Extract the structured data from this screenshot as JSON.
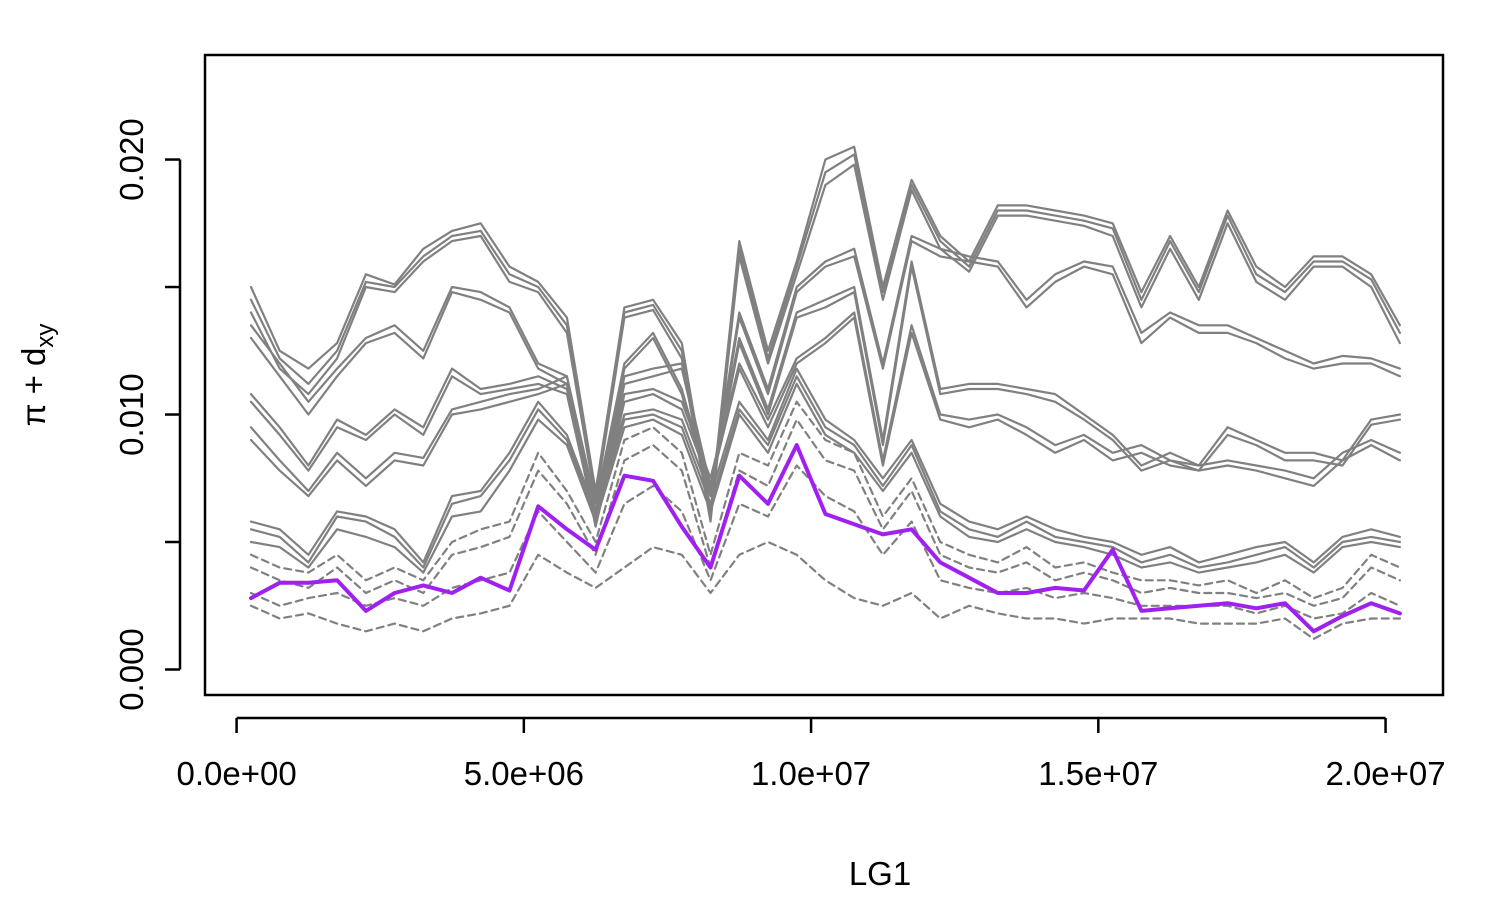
{
  "chart_data": {
    "type": "line",
    "xlabel": "LG1",
    "ylabel": {
      "main": "π + d",
      "sub": "xy"
    },
    "xlim": [
      -550000,
      21000000
    ],
    "ylim": [
      -0.001,
      0.0241
    ],
    "xticks": [
      {
        "value": 0,
        "label": "0.0e+00"
      },
      {
        "value": 5000000,
        "label": "5.0e+06"
      },
      {
        "value": 10000000,
        "label": "1.0e+07"
      },
      {
        "value": 15000000,
        "label": "1.5e+07"
      },
      {
        "value": 20000000,
        "label": "2.0e+07"
      }
    ],
    "yticks": [
      {
        "value": 0.0,
        "label": "0.000"
      },
      {
        "value": 0.005,
        "label": ""
      },
      {
        "value": 0.01,
        "label": "0.010"
      },
      {
        "value": 0.015,
        "label": ""
      },
      {
        "value": 0.02,
        "label": "0.020"
      }
    ],
    "grid": false,
    "legend": "none",
    "colors": {
      "highlight": "#A020F0",
      "other": "#808080"
    },
    "x": [
      250000,
      750000,
      1250000,
      1750000,
      2250000,
      2750000,
      3250000,
      3750000,
      4250000,
      4750000,
      5250000,
      5750000,
      6250000,
      6750000,
      7250000,
      7750000,
      8250000,
      8750000,
      9250000,
      9750000,
      10250000,
      10750000,
      11250000,
      11750000,
      12250000,
      12750000,
      13250000,
      13750000,
      14250000,
      14750000,
      15250000,
      15750000,
      16250000,
      16750000,
      17250000,
      17750000,
      18250000,
      18750000,
      19250000,
      19750000,
      20250000
    ],
    "series": [
      {
        "style": "highlight",
        "values": [
          0.0028,
          0.0034,
          0.0034,
          0.0035,
          0.0023,
          0.003,
          0.0033,
          0.003,
          0.0036,
          0.0031,
          0.0064,
          0.0055,
          0.0047,
          0.0076,
          0.0074,
          0.0056,
          0.004,
          0.0076,
          0.0065,
          0.0088,
          0.0061,
          0.0057,
          0.0053,
          0.0055,
          0.0042,
          0.0036,
          0.003,
          0.003,
          0.0032,
          0.0031,
          0.0047,
          0.0023,
          0.0024,
          0.0025,
          0.0026,
          0.0024,
          0.0026,
          0.0015,
          0.0021,
          0.0026,
          0.0022
        ]
      },
      {
        "style": "solid",
        "values": [
          0.015,
          0.0125,
          0.0118,
          0.0128,
          0.0155,
          0.0151,
          0.0165,
          0.0172,
          0.0175,
          0.0158,
          0.0152,
          0.0138,
          0.007,
          0.0142,
          0.0145,
          0.0128,
          0.0062,
          0.0168,
          0.0125,
          0.016,
          0.02,
          0.0205,
          0.015,
          0.0192,
          0.017,
          0.016,
          0.0182,
          0.0182,
          0.018,
          0.0178,
          0.0175,
          0.0148,
          0.017,
          0.015,
          0.018,
          0.0158,
          0.015,
          0.0162,
          0.0162,
          0.0155,
          0.0135
        ]
      },
      {
        "style": "solid",
        "values": [
          0.0145,
          0.0122,
          0.0112,
          0.0125,
          0.0152,
          0.015,
          0.0162,
          0.017,
          0.0172,
          0.0155,
          0.015,
          0.0135,
          0.0068,
          0.014,
          0.0143,
          0.0125,
          0.006,
          0.0165,
          0.0122,
          0.0158,
          0.0195,
          0.0202,
          0.0148,
          0.019,
          0.0168,
          0.0158,
          0.018,
          0.018,
          0.0178,
          0.0176,
          0.0173,
          0.0145,
          0.0168,
          0.0148,
          0.0178,
          0.0155,
          0.0148,
          0.016,
          0.016,
          0.0153,
          0.0132
        ]
      },
      {
        "style": "solid",
        "values": [
          0.014,
          0.0118,
          0.0108,
          0.0122,
          0.015,
          0.0148,
          0.016,
          0.0168,
          0.017,
          0.0152,
          0.0148,
          0.0132,
          0.0066,
          0.0138,
          0.0141,
          0.0122,
          0.0058,
          0.0162,
          0.012,
          0.0155,
          0.019,
          0.0198,
          0.0145,
          0.0188,
          0.0165,
          0.0156,
          0.0178,
          0.0178,
          0.0176,
          0.0174,
          0.017,
          0.0142,
          0.0165,
          0.0145,
          0.0175,
          0.0152,
          0.0145,
          0.0158,
          0.0158,
          0.015,
          0.0128
        ]
      },
      {
        "style": "solid",
        "values": [
          0.0135,
          0.012,
          0.0105,
          0.0118,
          0.013,
          0.0135,
          0.0125,
          0.015,
          0.0148,
          0.0142,
          0.012,
          0.0115,
          0.0065,
          0.012,
          0.0132,
          0.011,
          0.007,
          0.014,
          0.011,
          0.015,
          0.016,
          0.0165,
          0.012,
          0.017,
          0.0165,
          0.0162,
          0.016,
          0.0145,
          0.0155,
          0.016,
          0.0158,
          0.0132,
          0.014,
          0.0135,
          0.0135,
          0.013,
          0.0125,
          0.012,
          0.0123,
          0.0122,
          0.0118
        ]
      },
      {
        "style": "solid",
        "values": [
          0.013,
          0.0115,
          0.01,
          0.0115,
          0.0128,
          0.0132,
          0.0122,
          0.0148,
          0.0145,
          0.014,
          0.0118,
          0.0112,
          0.0062,
          0.0118,
          0.013,
          0.0108,
          0.0068,
          0.0138,
          0.0108,
          0.0148,
          0.0158,
          0.0162,
          0.0118,
          0.0168,
          0.0162,
          0.016,
          0.0158,
          0.0142,
          0.0152,
          0.0158,
          0.0155,
          0.0128,
          0.0138,
          0.0132,
          0.0132,
          0.0128,
          0.0122,
          0.0118,
          0.012,
          0.012,
          0.0115
        ]
      },
      {
        "style": "solid",
        "values": [
          0.0108,
          0.0095,
          0.008,
          0.0098,
          0.0092,
          0.0102,
          0.0095,
          0.0118,
          0.011,
          0.0112,
          0.0115,
          0.011,
          0.006,
          0.0115,
          0.0118,
          0.012,
          0.0072,
          0.013,
          0.0102,
          0.014,
          0.0145,
          0.015,
          0.009,
          0.016,
          0.011,
          0.0112,
          0.0112,
          0.011,
          0.0108,
          0.01,
          0.0092,
          0.008,
          0.0085,
          0.008,
          0.0095,
          0.009,
          0.0085,
          0.0085,
          0.0082,
          0.0098,
          0.01
        ]
      },
      {
        "style": "solid",
        "values": [
          0.0105,
          0.0092,
          0.0078,
          0.0095,
          0.009,
          0.01,
          0.0092,
          0.0115,
          0.0108,
          0.011,
          0.0112,
          0.0108,
          0.0058,
          0.0112,
          0.0115,
          0.0118,
          0.007,
          0.0128,
          0.01,
          0.0138,
          0.0142,
          0.0148,
          0.0088,
          0.0158,
          0.0108,
          0.011,
          0.011,
          0.0108,
          0.0105,
          0.0098,
          0.009,
          0.0078,
          0.0082,
          0.0078,
          0.0092,
          0.0088,
          0.0082,
          0.0082,
          0.008,
          0.0096,
          0.0098
        ]
      },
      {
        "style": "solid",
        "values": [
          0.0095,
          0.0082,
          0.007,
          0.0085,
          0.0075,
          0.0085,
          0.0083,
          0.0102,
          0.0105,
          0.0108,
          0.011,
          0.0115,
          0.0058,
          0.0108,
          0.011,
          0.0105,
          0.0075,
          0.012,
          0.0098,
          0.0122,
          0.013,
          0.014,
          0.0082,
          0.0135,
          0.01,
          0.0098,
          0.01,
          0.0095,
          0.0088,
          0.0092,
          0.0085,
          0.0088,
          0.0082,
          0.008,
          0.0082,
          0.008,
          0.0078,
          0.0075,
          0.0085,
          0.009,
          0.0085
        ]
      },
      {
        "style": "solid",
        "values": [
          0.009,
          0.0078,
          0.0068,
          0.0082,
          0.0072,
          0.0082,
          0.008,
          0.01,
          0.0102,
          0.0105,
          0.0108,
          0.0112,
          0.0056,
          0.0105,
          0.0108,
          0.0102,
          0.0072,
          0.0118,
          0.0095,
          0.012,
          0.0128,
          0.0138,
          0.008,
          0.0132,
          0.0098,
          0.0095,
          0.0098,
          0.0092,
          0.0085,
          0.009,
          0.0082,
          0.0085,
          0.008,
          0.0078,
          0.008,
          0.0078,
          0.0075,
          0.0072,
          0.0082,
          0.0088,
          0.0082
        ]
      },
      {
        "style": "solid",
        "values": [
          0.0058,
          0.0055,
          0.0045,
          0.0062,
          0.006,
          0.0055,
          0.0042,
          0.0068,
          0.007,
          0.0085,
          0.0105,
          0.0092,
          0.0062,
          0.01,
          0.0102,
          0.0098,
          0.0068,
          0.0105,
          0.009,
          0.0118,
          0.0098,
          0.009,
          0.0075,
          0.009,
          0.0065,
          0.0058,
          0.0055,
          0.006,
          0.0055,
          0.0052,
          0.005,
          0.0045,
          0.0048,
          0.0042,
          0.0045,
          0.0048,
          0.005,
          0.0042,
          0.0052,
          0.0055,
          0.0052
        ]
      },
      {
        "style": "solid",
        "values": [
          0.0055,
          0.0052,
          0.0042,
          0.006,
          0.0058,
          0.0052,
          0.004,
          0.0065,
          0.0068,
          0.0082,
          0.0102,
          0.009,
          0.006,
          0.0098,
          0.01,
          0.0095,
          0.0065,
          0.0102,
          0.0088,
          0.0115,
          0.0095,
          0.0088,
          0.0072,
          0.0088,
          0.0062,
          0.0055,
          0.0052,
          0.0058,
          0.0052,
          0.005,
          0.0048,
          0.0042,
          0.0045,
          0.004,
          0.0042,
          0.0045,
          0.0048,
          0.004,
          0.005,
          0.0052,
          0.005
        ]
      },
      {
        "style": "solid",
        "values": [
          0.005,
          0.0048,
          0.004,
          0.0055,
          0.0052,
          0.0048,
          0.0038,
          0.006,
          0.0062,
          0.0078,
          0.0098,
          0.0088,
          0.0058,
          0.0095,
          0.0098,
          0.0092,
          0.0062,
          0.01,
          0.0085,
          0.0112,
          0.0092,
          0.0085,
          0.007,
          0.0085,
          0.006,
          0.0052,
          0.005,
          0.0055,
          0.005,
          0.0048,
          0.0045,
          0.004,
          0.0042,
          0.0038,
          0.004,
          0.0042,
          0.0045,
          0.0038,
          0.0048,
          0.005,
          0.0048
        ]
      },
      {
        "style": "dashed",
        "values": [
          0.0045,
          0.004,
          0.0038,
          0.0045,
          0.0035,
          0.004,
          0.0035,
          0.005,
          0.0055,
          0.0058,
          0.0085,
          0.007,
          0.005,
          0.009,
          0.0095,
          0.0085,
          0.0045,
          0.0085,
          0.008,
          0.0105,
          0.009,
          0.0085,
          0.006,
          0.0075,
          0.005,
          0.0045,
          0.0042,
          0.0048,
          0.004,
          0.0042,
          0.0038,
          0.0035,
          0.0035,
          0.0033,
          0.0035,
          0.003,
          0.0035,
          0.0028,
          0.0032,
          0.0045,
          0.004
        ]
      },
      {
        "style": "dashed",
        "values": [
          0.004,
          0.0035,
          0.0032,
          0.004,
          0.003,
          0.0035,
          0.003,
          0.0045,
          0.0048,
          0.0052,
          0.0078,
          0.0065,
          0.0045,
          0.0082,
          0.0088,
          0.0078,
          0.004,
          0.0078,
          0.0072,
          0.0098,
          0.0082,
          0.0078,
          0.0055,
          0.007,
          0.0045,
          0.004,
          0.0038,
          0.0042,
          0.0035,
          0.0038,
          0.0035,
          0.003,
          0.0032,
          0.003,
          0.003,
          0.0028,
          0.003,
          0.0025,
          0.0028,
          0.004,
          0.0035
        ]
      },
      {
        "style": "dashed",
        "values": [
          0.003,
          0.0025,
          0.0028,
          0.003,
          0.0025,
          0.0028,
          0.0025,
          0.0032,
          0.0035,
          0.0038,
          0.0062,
          0.005,
          0.0038,
          0.0065,
          0.0072,
          0.0062,
          0.0035,
          0.0065,
          0.006,
          0.008,
          0.0068,
          0.0062,
          0.0045,
          0.0058,
          0.0035,
          0.0032,
          0.003,
          0.0032,
          0.0028,
          0.003,
          0.0028,
          0.0025,
          0.0025,
          0.0025,
          0.0025,
          0.0022,
          0.0025,
          0.002,
          0.0022,
          0.003,
          0.0025
        ]
      },
      {
        "style": "dashed",
        "values": [
          0.0025,
          0.002,
          0.0022,
          0.0018,
          0.0015,
          0.0018,
          0.0015,
          0.002,
          0.0022,
          0.0025,
          0.0045,
          0.0038,
          0.0032,
          0.004,
          0.0048,
          0.0045,
          0.003,
          0.0045,
          0.005,
          0.0045,
          0.0035,
          0.0028,
          0.0025,
          0.003,
          0.002,
          0.0025,
          0.0022,
          0.002,
          0.002,
          0.0018,
          0.002,
          0.002,
          0.002,
          0.0018,
          0.0018,
          0.0018,
          0.002,
          0.0012,
          0.0018,
          0.002,
          0.002
        ]
      }
    ]
  }
}
